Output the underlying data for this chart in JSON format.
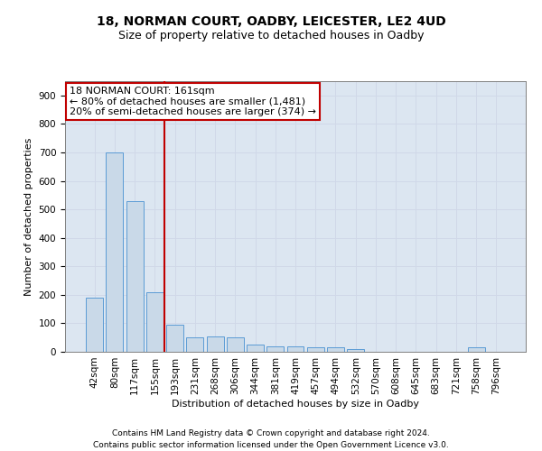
{
  "title": "18, NORMAN COURT, OADBY, LEICESTER, LE2 4UD",
  "subtitle": "Size of property relative to detached houses in Oadby",
  "xlabel": "Distribution of detached houses by size in Oadby",
  "ylabel": "Number of detached properties",
  "categories": [
    "42sqm",
    "80sqm",
    "117sqm",
    "155sqm",
    "193sqm",
    "231sqm",
    "268sqm",
    "306sqm",
    "344sqm",
    "381sqm",
    "419sqm",
    "457sqm",
    "494sqm",
    "532sqm",
    "570sqm",
    "608sqm",
    "645sqm",
    "683sqm",
    "721sqm",
    "758sqm",
    "796sqm"
  ],
  "values": [
    190,
    700,
    530,
    210,
    95,
    50,
    55,
    50,
    25,
    20,
    20,
    15,
    15,
    10,
    0,
    0,
    0,
    0,
    0,
    15,
    0
  ],
  "bar_color": "#c9d9e8",
  "bar_edge_color": "#5b9bd5",
  "vline_x": 3.5,
  "vline_color": "#c00000",
  "annotation_line1": "18 NORMAN COURT: 161sqm",
  "annotation_line2": "← 80% of detached houses are smaller (1,481)",
  "annotation_line3": "20% of semi-detached houses are larger (374) →",
  "ylim": [
    0,
    950
  ],
  "yticks": [
    0,
    100,
    200,
    300,
    400,
    500,
    600,
    700,
    800,
    900
  ],
  "grid_color": "#d0d8e8",
  "background_color": "#dce6f1",
  "footer_text": "Contains HM Land Registry data © Crown copyright and database right 2024.\nContains public sector information licensed under the Open Government Licence v3.0.",
  "title_fontsize": 10,
  "subtitle_fontsize": 9,
  "axis_label_fontsize": 8,
  "tick_fontsize": 7.5,
  "annotation_fontsize": 8,
  "footer_fontsize": 6.5
}
